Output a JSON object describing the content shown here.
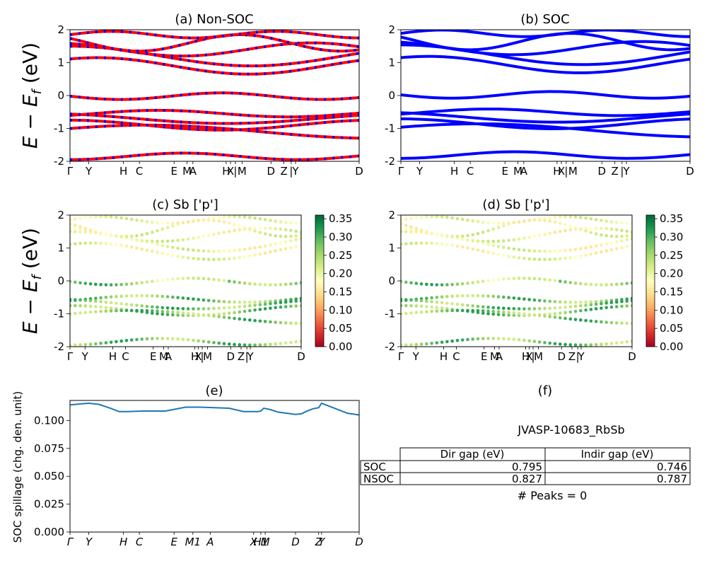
{
  "figure": {
    "id_label": "JVASP-10683_RbSb",
    "peaks_label": "# Peaks = 0"
  },
  "band_ylabel": "E − E_f (eV)",
  "kpath_labels": [
    "Γ",
    "Y",
    "H",
    "C",
    "E",
    "M",
    "A",
    "H",
    "X",
    "|",
    "M",
    "D",
    "Z",
    "|",
    "Y",
    "D"
  ],
  "kpath_positions": [
    0,
    0.065,
    0.185,
    0.24,
    0.36,
    0.405,
    0.425,
    0.54,
    0.555,
    0.572,
    0.595,
    0.695,
    0.74,
    0.765,
    0.78,
    1.0
  ],
  "spillage_kpath_labels": [
    "Γ",
    "Y",
    "H",
    "C",
    "E",
    "M1",
    "A",
    "X",
    "H1",
    "M",
    "D",
    "Z",
    "Y",
    "D"
  ],
  "spillage_kpath_positions": [
    0,
    0.065,
    0.185,
    0.24,
    0.36,
    0.425,
    0.485,
    0.635,
    0.66,
    0.675,
    0.78,
    0.86,
    0.87,
    1.0
  ],
  "chart_data": [
    {
      "type": "line",
      "panel": "a",
      "title": "(a) Non-SOC",
      "ylabel": "E − E_f (eV)",
      "ylim": [
        -2,
        2
      ],
      "yticks": [
        -2,
        -1,
        0,
        1,
        2
      ],
      "series": [
        {
          "name": "spin up",
          "color": "#ff0000"
        },
        {
          "name": "spin down",
          "color": "#0000ff"
        }
      ]
    },
    {
      "type": "line",
      "panel": "b",
      "title": "(b) SOC",
      "ylim": [
        -2,
        2
      ],
      "yticks": [
        -2,
        -1,
        0,
        1,
        2
      ],
      "series": [
        {
          "name": "bands",
          "color": "#0000ff"
        }
      ]
    },
    {
      "type": "scatter",
      "panel": "c",
      "title": "(c)  Sb ['p']",
      "ylabel": "E − E_f (eV)",
      "ylim": [
        -2,
        2
      ],
      "yticks": [
        -2,
        -1,
        0,
        1,
        2
      ],
      "colorbar": {
        "min": 0.0,
        "max": 0.36,
        "ticks": [
          0.0,
          0.05,
          0.1,
          0.15,
          0.2,
          0.25,
          0.3,
          0.35
        ],
        "cmap": "RdYlGn"
      }
    },
    {
      "type": "scatter",
      "panel": "d",
      "title": "(d) Sb ['p']",
      "ylim": [
        -2,
        2
      ],
      "yticks": [
        -2,
        -1,
        0,
        1,
        2
      ],
      "colorbar": {
        "min": 0.0,
        "max": 0.36,
        "ticks": [
          0.0,
          0.05,
          0.1,
          0.15,
          0.2,
          0.25,
          0.3,
          0.35
        ],
        "cmap": "RdYlGn"
      }
    },
    {
      "type": "line",
      "panel": "e",
      "title": "(e)",
      "ylabel": "SOC spillage (chg. den. unit)",
      "ylim": [
        0,
        0.118
      ],
      "yticks": [
        0.0,
        0.025,
        0.05,
        0.075,
        0.1
      ],
      "series": [
        {
          "name": "spillage",
          "color": "#1f77b4",
          "x": [
            0,
            0.02,
            0.04,
            0.065,
            0.1,
            0.14,
            0.17,
            0.2,
            0.25,
            0.3,
            0.33,
            0.36,
            0.4,
            0.45,
            0.5,
            0.55,
            0.6,
            0.63,
            0.65,
            0.66,
            0.67,
            0.69,
            0.72,
            0.75,
            0.78,
            0.8,
            0.82,
            0.84,
            0.86,
            0.87,
            0.88,
            0.9,
            0.93,
            0.96,
            1.0
          ],
          "values": [
            0.114,
            0.1145,
            0.115,
            0.1155,
            0.1145,
            0.111,
            0.108,
            0.108,
            0.1085,
            0.1085,
            0.1085,
            0.11,
            0.112,
            0.112,
            0.1115,
            0.111,
            0.108,
            0.108,
            0.108,
            0.1085,
            0.111,
            0.11,
            0.1075,
            0.1065,
            0.1055,
            0.106,
            0.1085,
            0.1105,
            0.1115,
            0.1155,
            0.1145,
            0.1125,
            0.1095,
            0.1065,
            0.105
          ]
        }
      ]
    },
    {
      "type": "table",
      "panel": "f",
      "title": "(f)",
      "columns": [
        "",
        "Dir gap (eV)",
        "Indir gap (eV)"
      ],
      "rows": [
        [
          "SOC",
          "0.795",
          "0.746"
        ],
        [
          "NSOC",
          "0.827",
          "0.787"
        ]
      ]
    }
  ]
}
